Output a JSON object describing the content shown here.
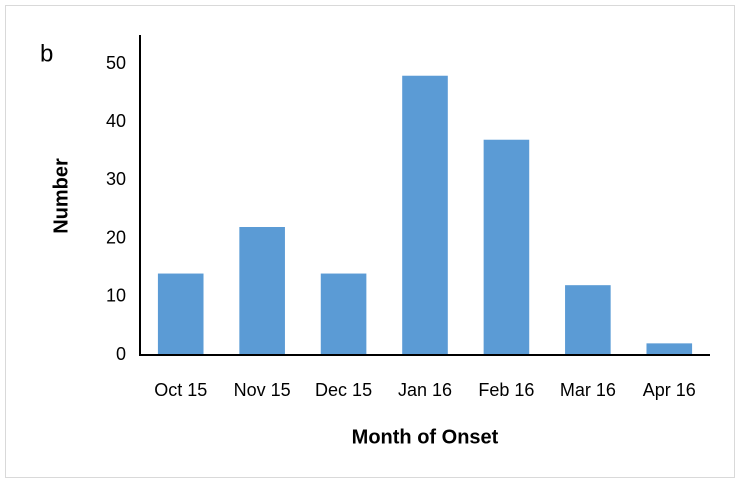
{
  "chart_data": {
    "type": "bar",
    "panel_label": "b",
    "y_label": "Number",
    "x_label": "Month of Onset",
    "categories": [
      "Oct 15",
      "Nov 15",
      "Dec 15",
      "Jan 16",
      "Feb 16",
      "Mar 16",
      "Apr 16"
    ],
    "values": [
      14,
      22,
      14,
      48,
      37,
      12,
      2
    ],
    "color": "#5b9bd5",
    "ylim": [
      0,
      55
    ],
    "yticks": [
      0,
      10,
      20,
      30,
      40,
      50
    ],
    "grid": false
  }
}
